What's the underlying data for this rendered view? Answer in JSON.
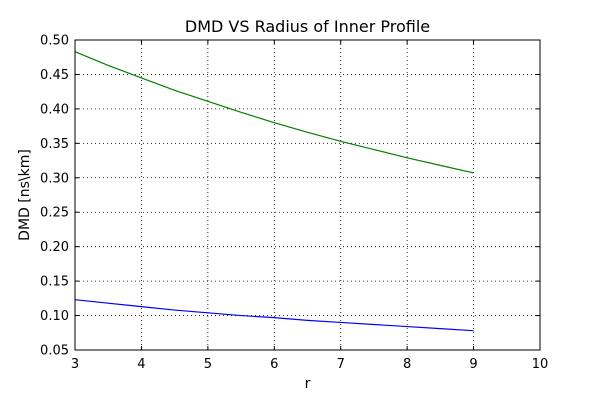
{
  "chart_data": {
    "type": "line",
    "title": "DMD VS Radius of Inner Profile",
    "xlabel": "r",
    "ylabel": "DMD [ns\\km]",
    "xlim": [
      3,
      10
    ],
    "ylim": [
      0.05,
      0.5
    ],
    "xticks": [
      3,
      4,
      5,
      6,
      7,
      8,
      9,
      10
    ],
    "yticks": [
      0.05,
      0.1,
      0.15,
      0.2,
      0.25,
      0.3,
      0.35,
      0.4,
      0.45,
      0.5
    ],
    "xtick_labels": [
      "3",
      "4",
      "5",
      "6",
      "7",
      "8",
      "9",
      "10"
    ],
    "ytick_labels": [
      "0.05",
      "0.10",
      "0.15",
      "0.20",
      "0.25",
      "0.30",
      "0.35",
      "0.40",
      "0.45",
      "0.50"
    ],
    "grid": true,
    "grid_style": "dotted",
    "legend": false,
    "series": [
      {
        "color": "#008000",
        "x": [
          3,
          3.5,
          4,
          4.5,
          5,
          5.5,
          6,
          6.5,
          7,
          7.5,
          8,
          8.5,
          9
        ],
        "y": [
          0.483,
          0.463,
          0.445,
          0.427,
          0.411,
          0.395,
          0.38,
          0.366,
          0.353,
          0.341,
          0.329,
          0.318,
          0.307
        ]
      },
      {
        "color": "#0000ff",
        "x": [
          3,
          3.5,
          4,
          4.5,
          5,
          5.5,
          6,
          6.5,
          7,
          7.5,
          8,
          8.5,
          9
        ],
        "y": [
          0.123,
          0.118,
          0.113,
          0.108,
          0.104,
          0.1,
          0.097,
          0.093,
          0.09,
          0.087,
          0.084,
          0.081,
          0.078
        ]
      }
    ]
  }
}
